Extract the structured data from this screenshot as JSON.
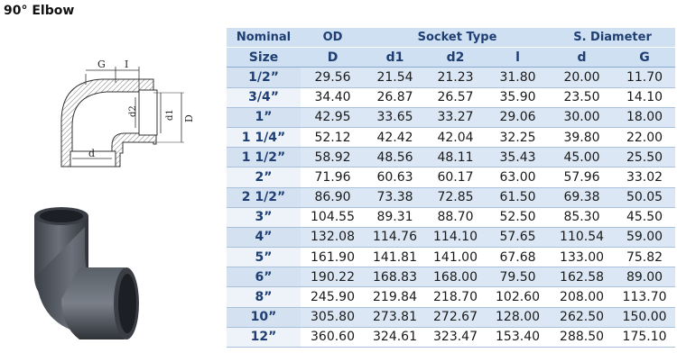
{
  "title": "90° Elbow",
  "drawing": {
    "labels": {
      "G": "G",
      "I": "I",
      "d2": "d2",
      "d1": "d1",
      "D": "D",
      "d": "d"
    }
  },
  "table": {
    "group_headers": [
      "Nominal",
      "OD",
      "Socket Type",
      "S. Diameter"
    ],
    "column_headers": [
      "Size",
      "D",
      "d1",
      "d2",
      "l",
      "d",
      "G"
    ],
    "rows": [
      [
        "1/2”",
        "29.56",
        "21.54",
        "21.23",
        "31.80",
        "20.00",
        "11.70"
      ],
      [
        "3/4”",
        "34.40",
        "26.87",
        "26.57",
        "35.90",
        "23.50",
        "14.10"
      ],
      [
        "1”",
        "42.95",
        "33.65",
        "33.27",
        "29.06",
        "30.00",
        "18.00"
      ],
      [
        "1 1/4”",
        "52.12",
        "42.42",
        "42.04",
        "32.25",
        "39.80",
        "22.00"
      ],
      [
        "1 1/2”",
        "58.92",
        "48.56",
        "48.11",
        "35.43",
        "45.00",
        "25.50"
      ],
      [
        "2”",
        "71.96",
        "60.63",
        "60.17",
        "63.00",
        "57.96",
        "33.02"
      ],
      [
        "2 1/2”",
        "86.90",
        "73.38",
        "72.85",
        "61.50",
        "69.38",
        "50.05"
      ],
      [
        "3”",
        "104.55",
        "89.31",
        "88.70",
        "52.50",
        "85.30",
        "45.50"
      ],
      [
        "4”",
        "132.08",
        "114.76",
        "114.10",
        "57.65",
        "110.54",
        "59.00"
      ],
      [
        "5”",
        "161.90",
        "141.81",
        "141.00",
        "67.68",
        "133.00",
        "75.82"
      ],
      [
        "6”",
        "190.22",
        "168.83",
        "168.00",
        "79.50",
        "162.58",
        "89.00"
      ],
      [
        "8”",
        "245.90",
        "219.84",
        "218.70",
        "102.60",
        "208.00",
        "113.70"
      ],
      [
        "10”",
        "305.80",
        "273.81",
        "272.67",
        "128.00",
        "262.50",
        "150.00"
      ],
      [
        "12”",
        "360.60",
        "324.61",
        "323.47",
        "153.40",
        "288.50",
        "175.10"
      ]
    ]
  }
}
